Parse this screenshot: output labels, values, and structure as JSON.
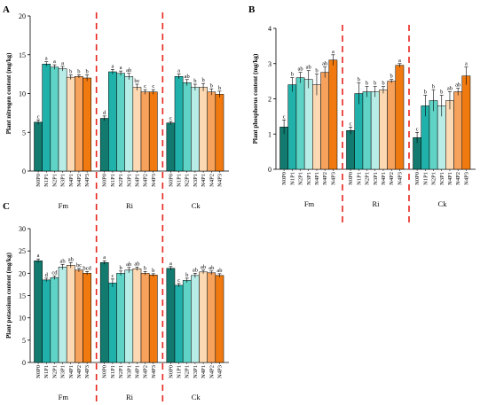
{
  "chart_data": [
    {
      "type": "bar",
      "panel_label": "A",
      "ylabel": "Plant nitrogen content (mg/kg)",
      "ylim": [
        0,
        20
      ],
      "yticks": [
        0,
        5,
        10,
        15,
        20
      ],
      "groups": [
        "Fm",
        "Ri",
        "Ck"
      ],
      "categories": [
        "N0P0",
        "N1P1",
        "N2P1",
        "N3P1",
        "N4P1",
        "N4P2",
        "N4P3"
      ],
      "series": [
        {
          "group": "Fm",
          "values": [
            6.3,
            13.8,
            13.4,
            13.2,
            12.1,
            12.2,
            12.0
          ],
          "errors": [
            0.3,
            0.3,
            0.3,
            0.3,
            0.3,
            0.2,
            0.4
          ],
          "letters": [
            "c",
            "a",
            "a",
            "a",
            "b",
            "b",
            "b"
          ]
        },
        {
          "group": "Ri",
          "values": [
            6.8,
            12.8,
            12.6,
            12.2,
            10.8,
            10.2,
            10.2
          ],
          "errors": [
            0.3,
            0.3,
            0.3,
            0.4,
            0.4,
            0.3,
            0.3
          ],
          "letters": [
            "d",
            "a",
            "a",
            "ab",
            "bc",
            "c",
            "c"
          ]
        },
        {
          "group": "Ck",
          "values": [
            6.2,
            12.2,
            11.4,
            10.8,
            10.8,
            10.2,
            9.9
          ],
          "errors": [
            0.2,
            0.3,
            0.4,
            0.4,
            0.5,
            0.4,
            0.4
          ],
          "letters": [
            "c",
            "a",
            "ab",
            "b",
            "b",
            "b",
            "b"
          ]
        }
      ],
      "colors": [
        "#127a6e",
        "#20b2aa",
        "#5fd3c5",
        "#b8ece6",
        "#fcd9b3",
        "#f7a25c",
        "#f07a10"
      ],
      "separator": "dashed red vertical lines between groups"
    },
    {
      "type": "bar",
      "panel_label": "B",
      "ylabel": "Plant phosphorus  content (mg/kg)",
      "ylim": [
        0,
        4
      ],
      "yticks": [
        0,
        1,
        2,
        3,
        4
      ],
      "groups": [
        "Fm",
        "Ri",
        "Ck"
      ],
      "categories": [
        "N0P0",
        "N1P1",
        "N2P1",
        "N3P1",
        "N4P1",
        "N4P2",
        "N4P3"
      ],
      "series": [
        {
          "group": "Fm",
          "values": [
            1.2,
            2.4,
            2.6,
            2.55,
            2.4,
            2.75,
            3.1
          ],
          "errors": [
            0.2,
            0.2,
            0.15,
            0.25,
            0.3,
            0.15,
            0.15
          ],
          "letters": [
            "c",
            "b",
            "ab",
            "ab",
            "b",
            "ab",
            "a"
          ]
        },
        {
          "group": "Ri",
          "values": [
            1.1,
            2.15,
            2.2,
            2.2,
            2.25,
            2.5,
            2.95
          ],
          "errors": [
            0.1,
            0.3,
            0.15,
            0.15,
            0.1,
            0.05,
            0.05
          ],
          "letters": [
            "c",
            "b",
            "b",
            "b",
            "b",
            "b",
            "a"
          ]
        },
        {
          "group": "Ck",
          "values": [
            0.9,
            1.8,
            1.95,
            1.8,
            1.95,
            2.2,
            2.65
          ],
          "errors": [
            0.15,
            0.3,
            0.3,
            0.3,
            0.25,
            0.1,
            0.25
          ],
          "letters": [
            "c",
            "b",
            "b",
            "b",
            "ab",
            "ab",
            "a"
          ]
        }
      ],
      "colors": [
        "#127a6e",
        "#20b2aa",
        "#5fd3c5",
        "#b8ece6",
        "#fcd9b3",
        "#f7a25c",
        "#f07a10"
      ],
      "separator": "dashed red vertical lines between groups"
    },
    {
      "type": "bar",
      "panel_label": "C",
      "ylabel": "Plant potassium content (mg/kg)",
      "ylim": [
        0,
        30
      ],
      "yticks": [
        0,
        5,
        10,
        15,
        20,
        25,
        30
      ],
      "groups": [
        "Fm",
        "Ri",
        "Ck"
      ],
      "categories": [
        "N0P0",
        "N1P1",
        "N2P1",
        "N3P1",
        "N4P1",
        "N4P2",
        "N4P3"
      ],
      "series": [
        {
          "group": "Fm",
          "values": [
            22.8,
            18.5,
            19.0,
            21.4,
            21.8,
            20.7,
            20.0
          ],
          "errors": [
            0.4,
            0.4,
            0.4,
            0.6,
            0.6,
            0.4,
            0.4
          ],
          "letters": [
            "a",
            "d",
            "cd",
            "ab",
            "ab",
            "bc",
            "bcd"
          ]
        },
        {
          "group": "Ri",
          "values": [
            22.4,
            17.8,
            20.0,
            20.7,
            21.0,
            20.0,
            19.6
          ],
          "errors": [
            0.4,
            0.9,
            0.5,
            0.6,
            0.4,
            0.4,
            0.3
          ],
          "letters": [
            "a",
            "c",
            "b",
            "ab",
            "ab",
            "b",
            "b"
          ]
        },
        {
          "group": "Ck",
          "values": [
            21.1,
            17.3,
            18.4,
            19.5,
            20.3,
            20.1,
            19.5
          ],
          "errors": [
            0.4,
            0.4,
            0.5,
            0.5,
            0.4,
            0.4,
            0.4
          ],
          "letters": [
            "a",
            "c",
            "b",
            "ab",
            "ab",
            "ab",
            "ab"
          ]
        }
      ],
      "colors": [
        "#127a6e",
        "#20b2aa",
        "#5fd3c5",
        "#b8ece6",
        "#fcd9b3",
        "#f7a25c",
        "#f07a10"
      ],
      "separator": "dashed red vertical lines between groups"
    }
  ]
}
